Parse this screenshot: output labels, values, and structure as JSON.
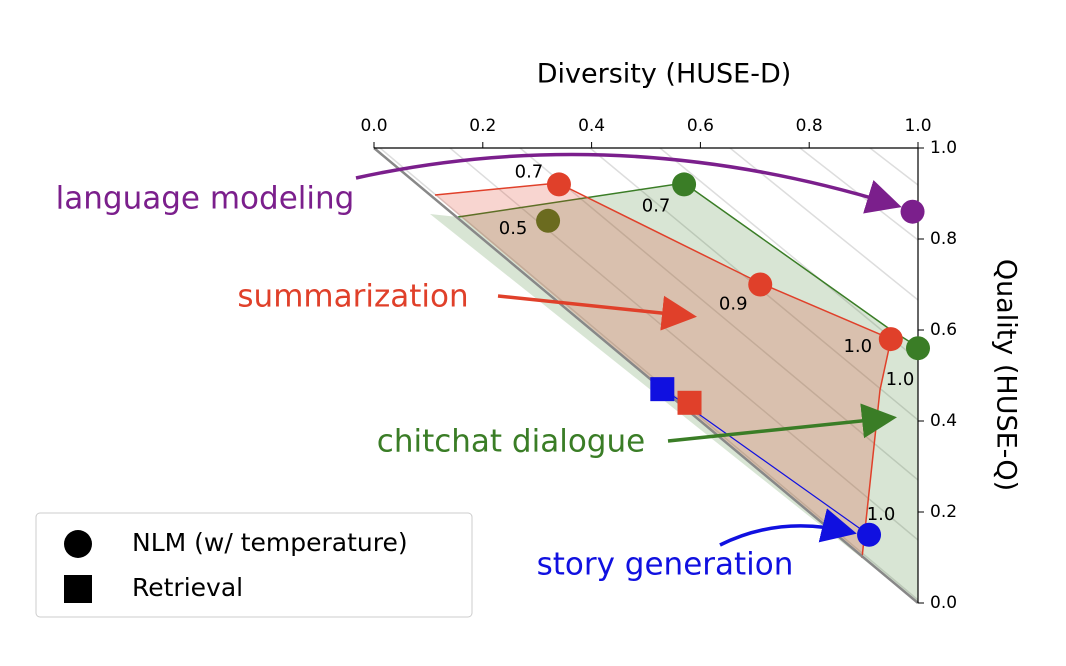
{
  "chart_data": {
    "type": "scatter",
    "xlabel": "Diversity (HUSE-D)",
    "ylabel": "Quality (HUSE-Q)",
    "xlim": [
      0,
      1
    ],
    "ylim": [
      0,
      1
    ],
    "xticks": [
      {
        "value": 0,
        "label": "0.0"
      },
      0.2,
      0.4,
      0.6,
      0.8,
      {
        "value": 1,
        "label": "1.0"
      }
    ],
    "yticks": [
      {
        "value": 0,
        "label": "0.0"
      },
      0.2,
      0.4,
      0.6,
      0.8,
      {
        "value": 1,
        "label": "1.0"
      }
    ],
    "series": [
      {
        "name": "language modeling",
        "color": "#7b1f8c",
        "x": [
          0.99
        ],
        "values": [
          0.86
        ],
        "point_labels": [
          null
        ]
      },
      {
        "name": "summarization",
        "color": "#e0402a",
        "x": [
          0.34,
          0.71,
          0.95
        ],
        "values": [
          0.92,
          0.7,
          0.58
        ],
        "point_labels": [
          "0.7",
          "0.9",
          "1.0"
        ],
        "retrieval": {
          "x": 0.58,
          "y": 0.44
        }
      },
      {
        "name": "chitchat dialogue",
        "color": "#3a7d26",
        "x": [
          0.32,
          0.57,
          1.0
        ],
        "values": [
          0.84,
          0.92,
          0.56
        ],
        "point_labels": [
          "0.5",
          "0.7",
          "1.0"
        ],
        "point_colors": [
          "#6b6b1f",
          "#3a7d26",
          "#3a7d26"
        ]
      },
      {
        "name": "story generation",
        "color": "#1010e0",
        "x": [
          0.91
        ],
        "values": [
          0.15
        ],
        "point_labels": [
          "1.0"
        ],
        "retrieval": {
          "x": 0.53,
          "y": 0.47
        }
      }
    ],
    "legend": [
      {
        "label": "NLM (w/ temperature)",
        "marker": "circle"
      },
      {
        "label": "Retrieval",
        "marker": "square"
      }
    ]
  }
}
